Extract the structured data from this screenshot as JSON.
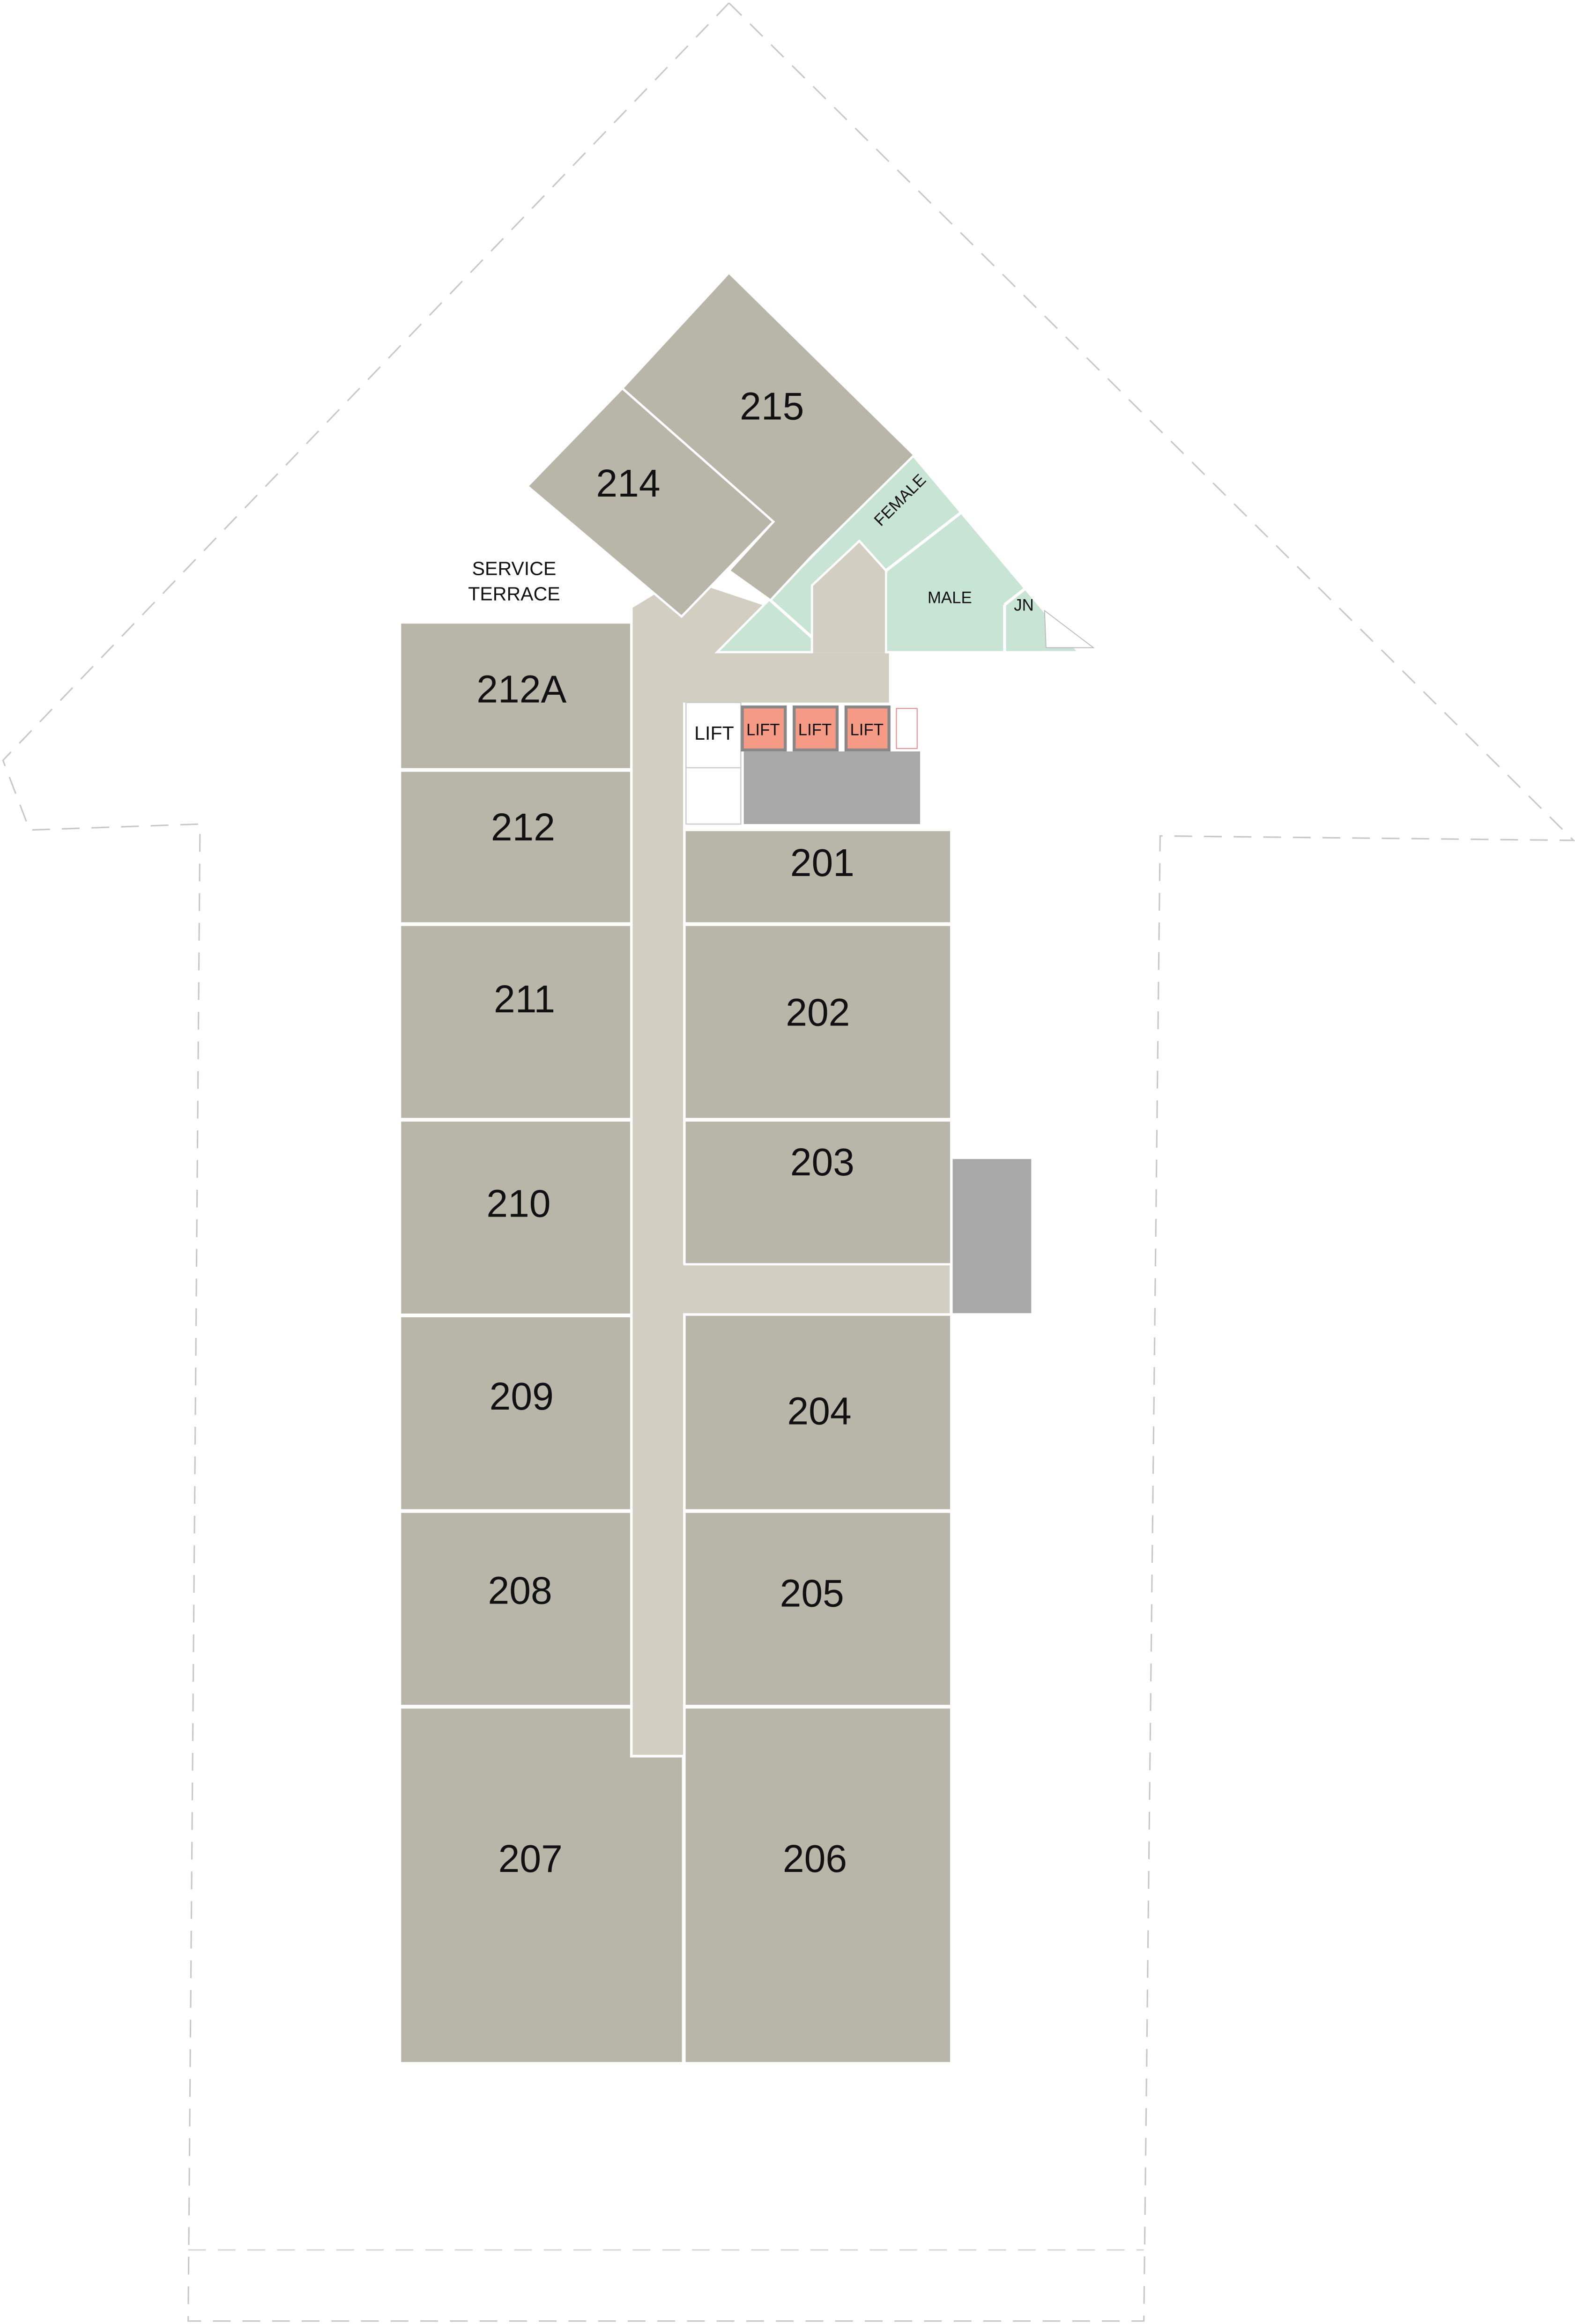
{
  "colors": {
    "room": "#b8b5a9",
    "corridor": "#d2cec2",
    "toilets": "#c8e4d4",
    "lift_highlight": "#f59a84",
    "stairs": "#a8a8a8",
    "outline": "#c8c8c8"
  },
  "labels": {
    "service_terrace_line1": "SERVICE",
    "service_terrace_line2": "TERRACE",
    "female": "FEMALE",
    "male": "MALE",
    "jn": "JN",
    "lift_main": "LIFT",
    "lift_1": "LIFT",
    "lift_2": "LIFT",
    "lift_3": "LIFT"
  },
  "rooms": {
    "r201": "201",
    "r202": "202",
    "r203": "203",
    "r204": "204",
    "r205": "205",
    "r206": "206",
    "r207": "207",
    "r208": "208",
    "r209": "209",
    "r210": "210",
    "r211": "211",
    "r212": "212",
    "r212a": "212A",
    "r214": "214",
    "r215": "215"
  }
}
